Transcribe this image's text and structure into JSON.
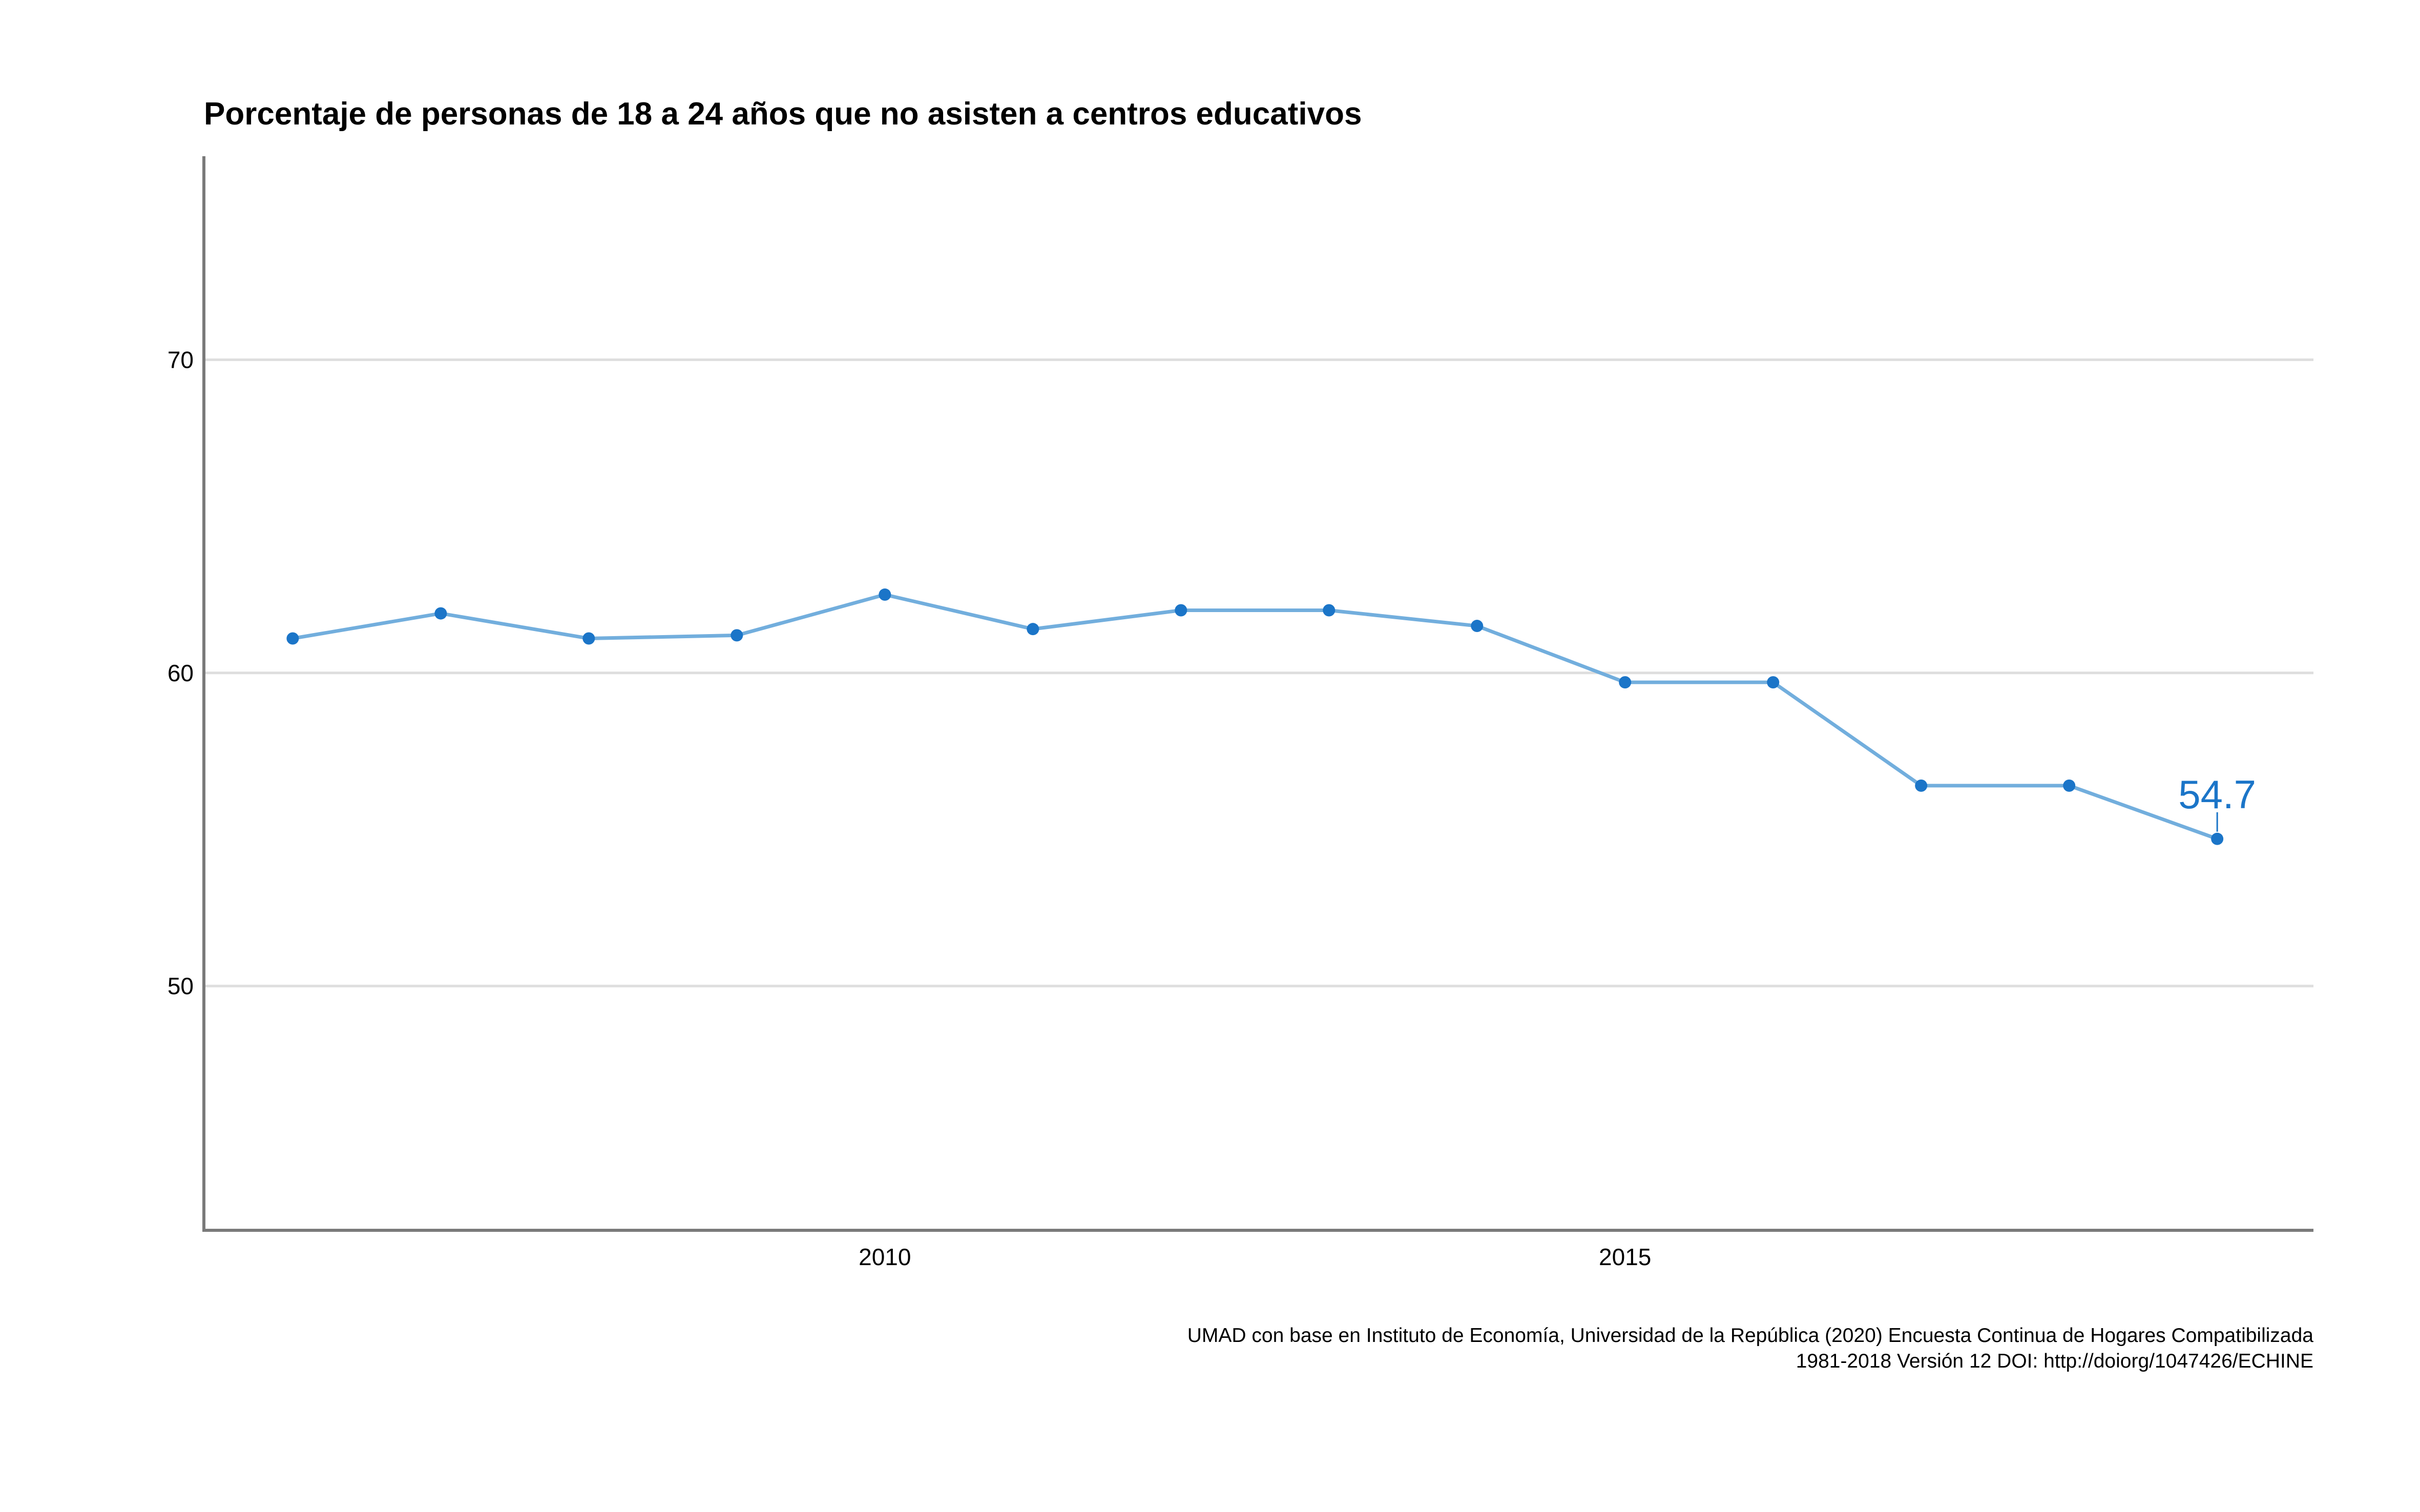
{
  "chart_data": {
    "type": "line",
    "title": "Porcentaje de personas de 18 a 24 años que no asisten a centros educativos",
    "xlabel": "",
    "ylabel": "",
    "x_ticks": [
      2010,
      2015
    ],
    "y_ticks": [
      50,
      60,
      70
    ],
    "xlim": [
      2005.4,
      2019.65
    ],
    "ylim": [
      42.2,
      76.5
    ],
    "grid": {
      "horizontal": true,
      "vertical": false
    },
    "series": [
      {
        "color": "#1b75c8",
        "line_color": "#72aedd",
        "points": [
          {
            "x": 2006,
            "y": 61.1
          },
          {
            "x": 2007,
            "y": 61.9
          },
          {
            "x": 2008,
            "y": 61.1
          },
          {
            "x": 2009,
            "y": 61.2
          },
          {
            "x": 2010,
            "y": 62.5
          },
          {
            "x": 2011,
            "y": 61.4
          },
          {
            "x": 2012,
            "y": 62.0
          },
          {
            "x": 2013,
            "y": 62.0
          },
          {
            "x": 2014,
            "y": 61.5
          },
          {
            "x": 2015,
            "y": 59.7
          },
          {
            "x": 2016,
            "y": 59.7
          },
          {
            "x": 2017,
            "y": 56.4
          },
          {
            "x": 2018,
            "y": 56.4
          },
          {
            "x": 2019,
            "y": 54.7
          }
        ]
      }
    ],
    "annotations": [
      {
        "x": 2019,
        "y": 54.7,
        "text": "54.7"
      }
    ],
    "caption": [
      "UMAD con base en Instituto de Economía, Universidad de la República (2020) Encuesta Continua de Hogares Compatibilizada",
      "1981-2018 Versión 12 DOI: http://doiorg/1047426/ECHINE"
    ]
  }
}
